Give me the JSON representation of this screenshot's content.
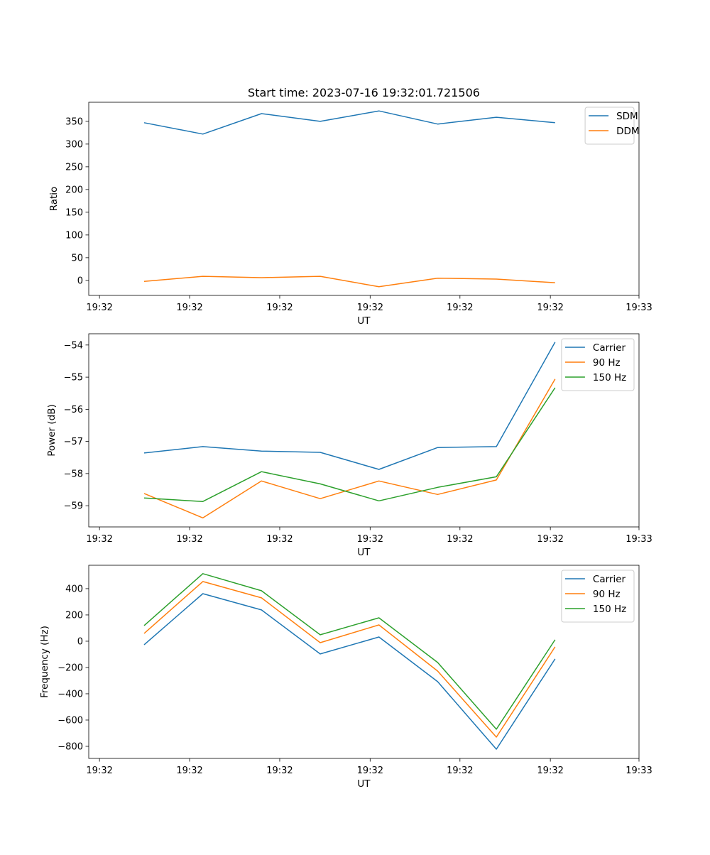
{
  "colors": {
    "blue": "#1f77b4",
    "orange": "#ff7f0e",
    "green": "#2ca02c"
  },
  "chart_data": [
    {
      "type": "line",
      "title": "Start time: 2023-07-16 19:32:01.721506",
      "xlabel": "UT",
      "ylabel": "Ratio",
      "x": [
        0,
        1,
        2,
        3,
        4,
        5,
        6,
        7
      ],
      "xlim": [
        -0.943,
        8.43
      ],
      "xticks": [
        -0.76,
        0.775,
        2.31,
        3.85,
        5.38,
        6.92,
        8.43
      ],
      "xtick_labels": [
        "19:32",
        "19:32",
        "19:32",
        "19:32",
        "19:32",
        "19:32",
        "19:33"
      ],
      "ylim": [
        -33,
        392
      ],
      "yticks": [
        0,
        50,
        100,
        150,
        200,
        250,
        300,
        350
      ],
      "ytick_labels": [
        "0",
        "50",
        "100",
        "150",
        "200",
        "250",
        "300",
        "350"
      ],
      "legend": "top-right",
      "series": [
        {
          "name": "SDM",
          "color": "#1f77b4",
          "values": [
            347,
            322,
            367,
            350,
            373,
            344,
            359,
            347
          ]
        },
        {
          "name": "DDM",
          "color": "#ff7f0e",
          "values": [
            -2,
            9,
            6,
            9,
            -14,
            5,
            3,
            -5
          ]
        }
      ]
    },
    {
      "type": "line",
      "xlabel": "UT",
      "ylabel": "Power (dB)",
      "x": [
        0,
        1,
        2,
        3,
        4,
        5,
        6,
        7
      ],
      "xlim": [
        -0.943,
        8.43
      ],
      "xticks": [
        -0.76,
        0.775,
        2.31,
        3.85,
        5.38,
        6.92,
        8.43
      ],
      "xtick_labels": [
        "19:32",
        "19:32",
        "19:32",
        "19:32",
        "19:32",
        "19:32",
        "19:33"
      ],
      "ylim": [
        -59.66,
        -53.65
      ],
      "yticks": [
        -59,
        -58,
        -57,
        -56,
        -55,
        -54
      ],
      "ytick_labels": [
        "−59",
        "−58",
        "−57",
        "−56",
        "−55",
        "−54"
      ],
      "legend": "top-right",
      "series": [
        {
          "name": "Carrier",
          "color": "#1f77b4",
          "values": [
            -57.36,
            -57.16,
            -57.3,
            -57.34,
            -57.87,
            -57.19,
            -57.16,
            -53.91
          ]
        },
        {
          "name": "90 Hz",
          "color": "#ff7f0e",
          "values": [
            -58.62,
            -59.38,
            -58.23,
            -58.78,
            -58.23,
            -58.65,
            -58.2,
            -55.06
          ]
        },
        {
          "name": "150 Hz",
          "color": "#2ca02c",
          "values": [
            -58.76,
            -58.87,
            -57.94,
            -58.32,
            -58.85,
            -58.43,
            -58.1,
            -55.33
          ]
        }
      ]
    },
    {
      "type": "line",
      "xlabel": "UT",
      "ylabel": "Frequency (Hz)",
      "x": [
        0,
        1,
        2,
        3,
        4,
        5,
        6,
        7
      ],
      "xlim": [
        -0.943,
        8.43
      ],
      "xticks": [
        -0.76,
        0.775,
        2.31,
        3.85,
        5.38,
        6.92,
        8.43
      ],
      "xtick_labels": [
        "19:32",
        "19:32",
        "19:32",
        "19:32",
        "19:32",
        "19:32",
        "19:33"
      ],
      "ylim": [
        -892,
        578
      ],
      "yticks": [
        -800,
        -600,
        -400,
        -200,
        0,
        200,
        400
      ],
      "ytick_labels": [
        "−800",
        "−600",
        "−400",
        "−200",
        "0",
        "200",
        "400"
      ],
      "legend": "top-right",
      "series": [
        {
          "name": "Carrier",
          "color": "#1f77b4",
          "values": [
            -27,
            362,
            238,
            -97,
            32,
            -308,
            -822,
            -135
          ]
        },
        {
          "name": "90 Hz",
          "color": "#ff7f0e",
          "values": [
            59,
            454,
            330,
            -11,
            124,
            -227,
            -730,
            -43
          ]
        },
        {
          "name": "150 Hz",
          "color": "#2ca02c",
          "values": [
            119,
            514,
            384,
            49,
            178,
            -162,
            -670,
            11
          ]
        }
      ]
    }
  ]
}
